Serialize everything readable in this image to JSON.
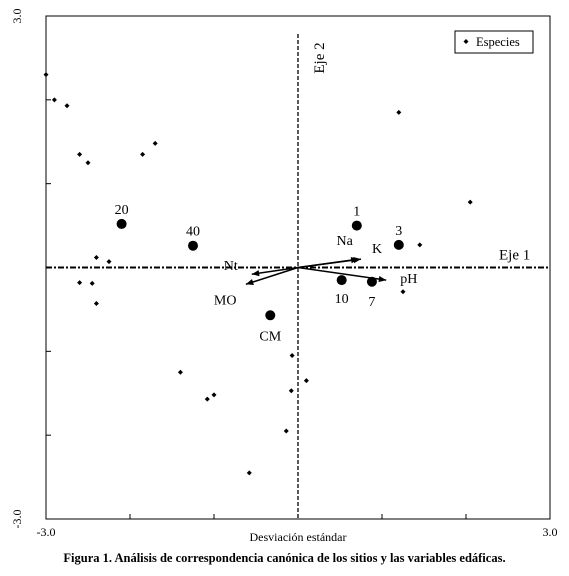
{
  "chart_data": {
    "type": "scatter",
    "xlabel": "Desviación estándar",
    "xlim": [
      -3.0,
      3.0
    ],
    "ylim": [
      -3.0,
      3.0
    ],
    "x_ticks": [
      "-3.0",
      "3.0"
    ],
    "y_ticks": [
      "3.0",
      "-3.0"
    ],
    "axis1_label": "Eje 1",
    "axis2_label": "Eje 2",
    "legend": {
      "label": "Especies",
      "position": "top-right"
    },
    "grid": false,
    "species_points": [
      [
        -3.0,
        2.3
      ],
      [
        -2.9,
        2.0
      ],
      [
        -2.75,
        1.93
      ],
      [
        -2.6,
        1.35
      ],
      [
        -2.5,
        1.25
      ],
      [
        -1.85,
        1.35
      ],
      [
        -1.7,
        1.48
      ],
      [
        -2.4,
        0.12
      ],
      [
        -2.25,
        0.07
      ],
      [
        -2.6,
        -0.18
      ],
      [
        -2.45,
        -0.19
      ],
      [
        -2.4,
        -0.43
      ],
      [
        -1.4,
        -1.25
      ],
      [
        -1.08,
        -1.57
      ],
      [
        -1.0,
        -1.52
      ],
      [
        -0.58,
        -2.45
      ],
      [
        -0.07,
        -1.05
      ],
      [
        -0.08,
        -1.47
      ],
      [
        -0.14,
        -1.95
      ],
      [
        0.1,
        -1.35
      ],
      [
        1.2,
        1.85
      ],
      [
        1.45,
        0.27
      ],
      [
        1.25,
        -0.29
      ],
      [
        2.05,
        0.78
      ]
    ],
    "sites": [
      {
        "label": "20",
        "x": -2.1,
        "y": 0.52
      },
      {
        "label": "40",
        "x": -1.25,
        "y": 0.26
      },
      {
        "label": "1",
        "x": 0.7,
        "y": 0.5
      },
      {
        "label": "3",
        "x": 1.2,
        "y": 0.27
      },
      {
        "label": "10",
        "x": 0.52,
        "y": -0.15
      },
      {
        "label": "7",
        "x": 0.88,
        "y": -0.17
      },
      {
        "label": "CM",
        "x": -0.33,
        "y": -0.57
      }
    ],
    "variables": [
      {
        "label": "Nt",
        "x": -0.55,
        "y": -0.08
      },
      {
        "label": "MO",
        "x": -0.62,
        "y": -0.2
      },
      {
        "label": "Na",
        "x": 0.72,
        "y": 0.1
      },
      {
        "label": "K",
        "x": 0.75,
        "y": 0.1
      },
      {
        "label": "pH",
        "x": 1.05,
        "y": -0.15
      }
    ]
  },
  "caption": "Figura 1. Análisis de correspondencia canónica de los sitios y las variables edáficas."
}
